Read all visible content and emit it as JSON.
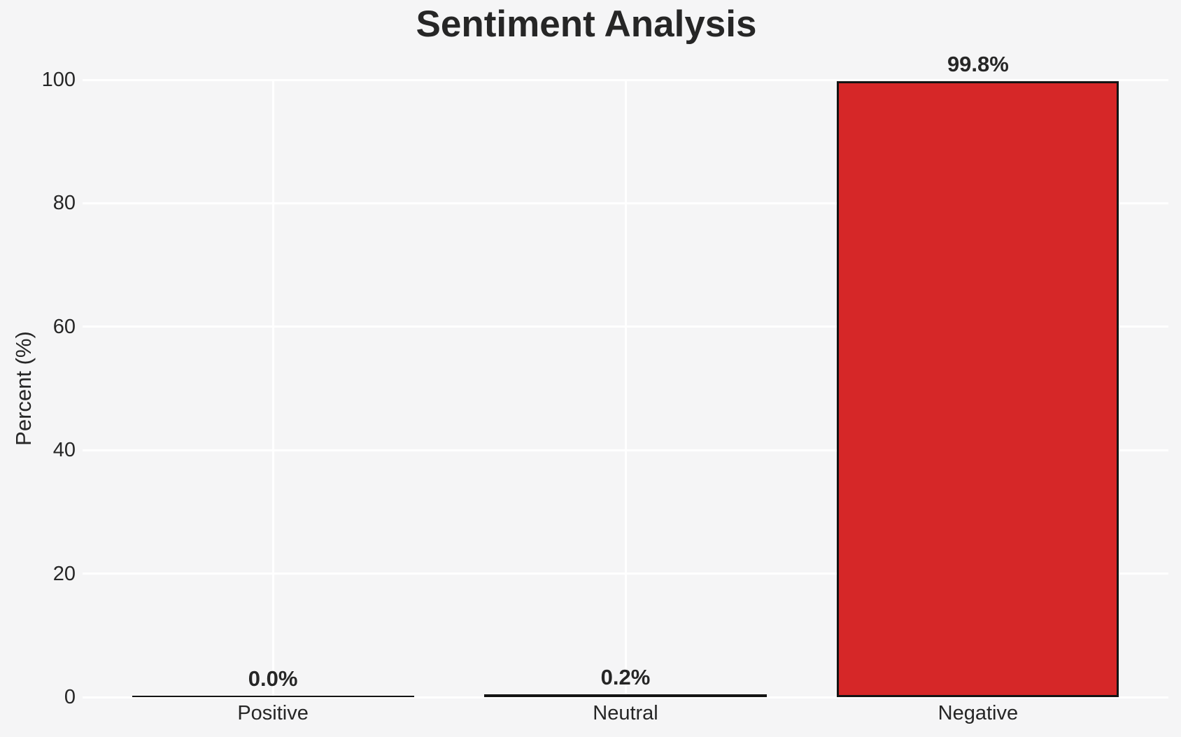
{
  "chart_data": {
    "type": "bar",
    "title": "Sentiment Analysis",
    "xlabel": "",
    "ylabel": "Percent (%)",
    "categories": [
      "Positive",
      "Neutral",
      "Negative"
    ],
    "values": [
      0.0,
      0.2,
      99.8
    ],
    "value_labels": [
      "0.0%",
      "0.2%",
      "99.8%"
    ],
    "yticks": [
      "0",
      "20",
      "40",
      "60",
      "80",
      "100"
    ],
    "ytick_values": [
      0,
      20,
      40,
      60,
      80,
      100
    ],
    "ylim": [
      0,
      100
    ],
    "grid": true,
    "legend": "none",
    "colors": {
      "background": "#f5f5f6",
      "gridline": "#ffffff",
      "bar_fill": "#d62728",
      "bar_edge": "#141414",
      "text": "#262626"
    }
  }
}
